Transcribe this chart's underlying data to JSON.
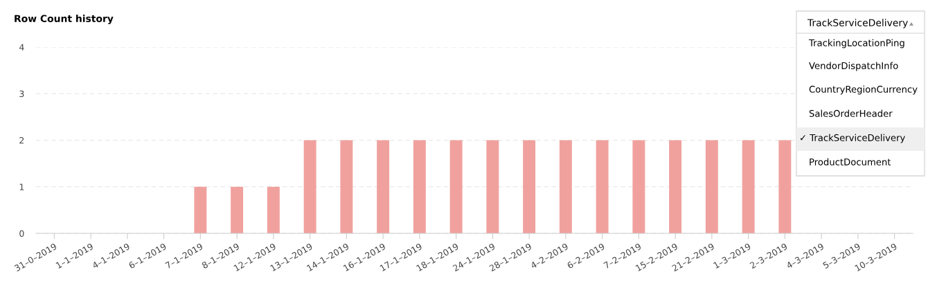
{
  "chart_data": {
    "type": "bar",
    "title": "Row Count history",
    "categories": [
      "31–0–2019",
      "1–1–2019",
      "4–1–2019",
      "6–1–2019",
      "7–1–2019",
      "8–1–2019",
      "12–1–2019",
      "13–1–2019",
      "14–1–2019",
      "16–1–2019",
      "17–1–2019",
      "18–1–2019",
      "24–1–2019",
      "28–1–2019",
      "4–2–2019",
      "6–2–2019",
      "7–2–2019",
      "15–2–2019",
      "21–2–2019",
      "1–3–2019",
      "2–3–2019",
      "4–3–2019",
      "5–3–2019",
      "10–3–2019"
    ],
    "values": [
      0,
      0,
      0,
      0,
      1,
      1,
      1,
      2,
      2,
      2,
      2,
      2,
      2,
      2,
      2,
      2,
      2,
      2,
      2,
      2,
      2,
      null,
      null,
      null
    ],
    "color": "#f0a19e",
    "ylim": [
      0,
      4
    ],
    "yticks": [
      0,
      1,
      2,
      3,
      4
    ],
    "grid": "y",
    "annotations": [
      "TrackServiceDelivery",
      "TrackingLocationPing",
      "VendorDispatchInfo",
      "CountryRegionCurrency",
      "SalesOrderHeader",
      "✓ TrackServiceDelivery",
      "ProductDocument"
    ]
  }
}
